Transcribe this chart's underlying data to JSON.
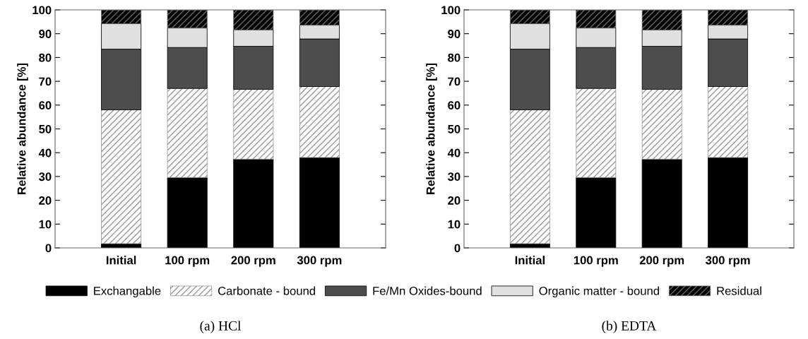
{
  "chart_data": [
    {
      "type": "bar",
      "stacked": true,
      "title": "(a) HCl",
      "ylabel": "Relative abundance [%]",
      "categories": [
        "Initial",
        "100 rpm",
        "200 rpm",
        "300 rpm"
      ],
      "ylim": [
        0,
        100
      ],
      "yticks": [
        0,
        10,
        20,
        30,
        40,
        50,
        60,
        70,
        80,
        90,
        100
      ],
      "legend": "bottom",
      "grid": false,
      "series": [
        {
          "name": "Exchangable",
          "color": "#000000",
          "values": [
            1.8,
            29.6,
            37.3,
            38.0
          ]
        },
        {
          "name": "Carbonate - bound",
          "color": "#999999",
          "values": [
            56.2,
            37.4,
            29.3,
            29.8
          ]
        },
        {
          "name": "Fe/Mn Oxides-bound",
          "color": "#4d4d4d",
          "values": [
            25.5,
            17.2,
            18.1,
            20.0
          ]
        },
        {
          "name": "Organic matter - bound",
          "color": "#e0e0e0",
          "values": [
            10.7,
            8.2,
            6.9,
            5.8
          ]
        },
        {
          "name": "Residual",
          "color": "#666666",
          "values": [
            5.8,
            7.6,
            8.4,
            6.4
          ]
        }
      ]
    },
    {
      "type": "bar",
      "stacked": true,
      "title": "(b) EDTA",
      "ylabel": "Relative abundance [%]",
      "categories": [
        "Initial",
        "100 rpm",
        "200 rpm",
        "300 rpm"
      ],
      "ylim": [
        0,
        100
      ],
      "yticks": [
        0,
        10,
        20,
        30,
        40,
        50,
        60,
        70,
        80,
        90,
        100
      ],
      "grid": false,
      "series": [
        {
          "color": "#000000",
          "values": [
            1.8,
            29.6,
            37.3,
            38.0
          ]
        },
        {
          "color": "#999999",
          "values": [
            56.2,
            37.4,
            29.3,
            29.8
          ]
        },
        {
          "color": "#4d4d4d",
          "values": [
            25.5,
            17.2,
            18.1,
            20.0
          ]
        },
        {
          "color": "#e0e0e0",
          "values": [
            10.7,
            8.2,
            6.9,
            5.8
          ]
        },
        {
          "color": "#666666",
          "values": [
            5.8,
            7.6,
            8.4,
            6.4
          ]
        }
      ]
    }
  ]
}
